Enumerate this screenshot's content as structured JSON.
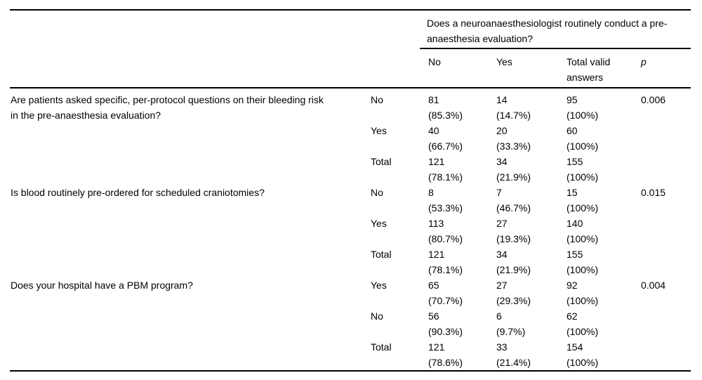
{
  "header": {
    "span_label": "Does a neuroanaesthesiologist routinely conduct a pre-anaesthesia evaluation?",
    "col_no": "No",
    "col_yes": "Yes",
    "col_total": "Total valid answers",
    "col_p": "p"
  },
  "table": {
    "groups": [
      {
        "question": "Are patients asked specific, per-protocol questions on their bleeding risk in the pre-anaesthesia evaluation?",
        "p": "0.006",
        "rows": [
          {
            "label": "No",
            "no": "81",
            "no_pct": "(85.3%)",
            "yes": "14",
            "yes_pct": "(14.7%)",
            "total": "95",
            "total_pct": "(100%)"
          },
          {
            "label": "Yes",
            "no": "40",
            "no_pct": "(66.7%)",
            "yes": "20",
            "yes_pct": "(33.3%)",
            "total": "60",
            "total_pct": "(100%)"
          },
          {
            "label": "Total",
            "no": "121",
            "no_pct": "(78.1%)",
            "yes": "34",
            "yes_pct": "(21.9%)",
            "total": "155",
            "total_pct": "(100%)"
          }
        ]
      },
      {
        "question": "Is blood routinely pre-ordered for scheduled craniotomies?",
        "p": "0.015",
        "rows": [
          {
            "label": "No",
            "no": "8",
            "no_pct": "(53.3%)",
            "yes": "7",
            "yes_pct": "(46.7%)",
            "total": "15",
            "total_pct": "(100%)"
          },
          {
            "label": "Yes",
            "no": "113",
            "no_pct": "(80.7%)",
            "yes": "27",
            "yes_pct": "(19.3%)",
            "total": "140",
            "total_pct": "(100%)"
          },
          {
            "label": "Total",
            "no": "121",
            "no_pct": "(78.1%)",
            "yes": "34",
            "yes_pct": "(21.9%)",
            "total": "155",
            "total_pct": "(100%)"
          }
        ]
      },
      {
        "question": "Does your hospital have a PBM program?",
        "p": "0.004",
        "rows": [
          {
            "label": "Yes",
            "no": "65",
            "no_pct": "(70.7%)",
            "yes": "27",
            "yes_pct": "(29.3%)",
            "total": "92",
            "total_pct": "(100%)"
          },
          {
            "label": "No",
            "no": "56",
            "no_pct": "(90.3%)",
            "yes": "6",
            "yes_pct": "(9.7%)",
            "total": "62",
            "total_pct": "(100%)"
          },
          {
            "label": "Total",
            "no": "121",
            "no_pct": "(78.6%)",
            "yes": "33",
            "yes_pct": "(21.4%)",
            "total": "154",
            "total_pct": "(100%)"
          }
        ]
      }
    ]
  }
}
